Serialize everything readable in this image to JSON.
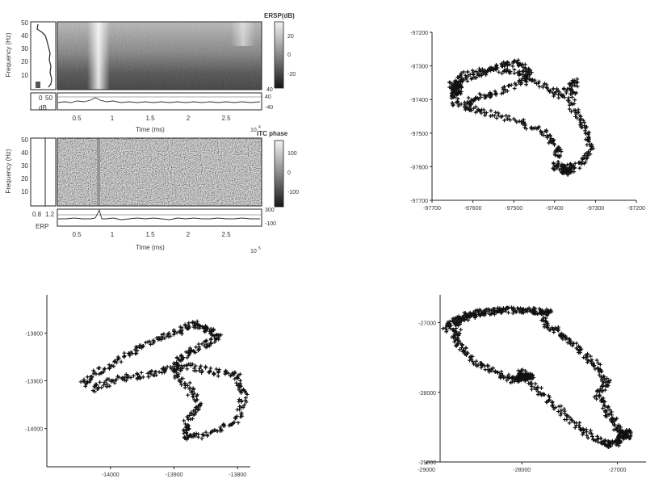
{
  "panels": {
    "ersp": {
      "title": "ERSP(dB)",
      "ylabel": "Frequency (Hz)",
      "yticks": [
        "50",
        "40",
        "30",
        "20",
        "10"
      ],
      "colorbar_ticks": [
        "20",
        "0",
        "-20"
      ],
      "colorbar_bottom": "40",
      "subrow_labels": [
        "0",
        "50",
        "dB"
      ],
      "subrow_right": [
        "40",
        "-40"
      ],
      "xlabel": "Time (ms)",
      "xticks": [
        "0.5",
        "1",
        "1.5",
        "2",
        "2.5"
      ],
      "multiplier": "10",
      "multiplier_exp": "4"
    },
    "itc": {
      "title": "ITC phase",
      "ylabel": "Frequency (Hz)",
      "yticks": [
        "50",
        "40",
        "30",
        "20",
        "10"
      ],
      "colorbar_ticks": [
        "100",
        "0",
        "-100"
      ],
      "subrow_labels": [
        "0.8",
        "1.2",
        "ERP"
      ],
      "subrow_right": [
        "300",
        "-100"
      ],
      "xlabel": "Time (ms)",
      "xticks": [
        "0.5",
        "1",
        "1.5",
        "2",
        "2.5"
      ],
      "multiplier": "10",
      "multiplier_exp": "5"
    }
  },
  "chart_data": [
    {
      "type": "scatter",
      "xlim": [
        -97700,
        -97200
      ],
      "ylim": [
        -97700,
        -97200
      ],
      "y_reversed": true,
      "xticks": [
        "-97700",
        "-97600",
        "-97500",
        "-97400",
        "-97300",
        "-97200"
      ],
      "yticks": [
        "-97200",
        "-97300",
        "-97400",
        "-97500",
        "-97600",
        "-97700"
      ],
      "marker": "+",
      "shape_path": [
        [
          -97660,
          -97360
        ],
        [
          -97600,
          -97330
        ],
        [
          -97530,
          -97300
        ],
        [
          -97490,
          -97290
        ],
        [
          -97460,
          -97320
        ],
        [
          -97480,
          -97350
        ],
        [
          -97540,
          -97380
        ],
        [
          -97600,
          -97400
        ],
        [
          -97620,
          -97420
        ],
        [
          -97560,
          -97440
        ],
        [
          -97480,
          -97470
        ],
        [
          -97420,
          -97500
        ],
        [
          -97390,
          -97550
        ],
        [
          -97400,
          -97600
        ],
        [
          -97370,
          -97620
        ],
        [
          -97330,
          -97580
        ],
        [
          -97310,
          -97530
        ],
        [
          -97330,
          -97470
        ],
        [
          -97360,
          -97410
        ],
        [
          -97350,
          -97340
        ],
        [
          -97380,
          -97390
        ],
        [
          -97430,
          -97360
        ],
        [
          -97490,
          -97320
        ],
        [
          -97560,
          -97310
        ],
        [
          -97630,
          -97330
        ],
        [
          -97650,
          -97380
        ],
        [
          -97640,
          -97420
        ]
      ],
      "dense": [
        [
          -97640,
          -97370
        ],
        [
          -97370,
          -97605
        ]
      ]
    },
    {
      "type": "scatter",
      "xlim": [
        -14100,
        -13780
      ],
      "ylim": [
        -14080,
        -13720
      ],
      "y_reversed": true,
      "xticks": [
        "-14000",
        "-13900",
        "-13800"
      ],
      "yticks": [
        "-13800",
        "-13900",
        "-14000"
      ],
      "marker": "+",
      "shape_path": [
        [
          -14045,
          -13910
        ],
        [
          -14020,
          -13880
        ],
        [
          -13980,
          -13850
        ],
        [
          -13940,
          -13820
        ],
        [
          -13900,
          -13800
        ],
        [
          -13870,
          -13780
        ],
        [
          -13850,
          -13790
        ],
        [
          -13830,
          -13810
        ],
        [
          -13860,
          -13830
        ],
        [
          -13890,
          -13850
        ],
        [
          -13900,
          -13880
        ],
        [
          -13880,
          -13910
        ],
        [
          -13860,
          -13950
        ],
        [
          -13880,
          -13990
        ],
        [
          -13880,
          -14020
        ],
        [
          -13840,
          -14010
        ],
        [
          -13800,
          -13980
        ],
        [
          -13790,
          -13930
        ],
        [
          -13800,
          -13890
        ],
        [
          -13840,
          -13880
        ],
        [
          -13880,
          -13870
        ],
        [
          -13920,
          -13880
        ],
        [
          -13960,
          -13890
        ],
        [
          -14000,
          -13900
        ],
        [
          -14030,
          -13920
        ]
      ]
    },
    {
      "type": "scatter",
      "xlim": [
        -29000,
        -26700
      ],
      "ylim": [
        -29000,
        -26600
      ],
      "y_reversed": true,
      "xticks": [
        "-29000",
        "-28000",
        "-27000"
      ],
      "yticks": [
        "-27000",
        "-28000",
        "-29000"
      ],
      "marker": "+",
      "shape_path": [
        [
          -28800,
          -27100
        ],
        [
          -28700,
          -26980
        ],
        [
          -28600,
          -26900
        ],
        [
          -28400,
          -26850
        ],
        [
          -28200,
          -26820
        ],
        [
          -27900,
          -26830
        ],
        [
          -27700,
          -26860
        ],
        [
          -27900,
          -26830
        ],
        [
          -28200,
          -26820
        ],
        [
          -28450,
          -26860
        ],
        [
          -28650,
          -26960
        ],
        [
          -28700,
          -27150
        ],
        [
          -28650,
          -27350
        ],
        [
          -28500,
          -27550
        ],
        [
          -28300,
          -27700
        ],
        [
          -28100,
          -27830
        ],
        [
          -28000,
          -27800
        ],
        [
          -27900,
          -27760
        ],
        [
          -28000,
          -27800
        ],
        [
          -28000,
          -27700
        ],
        [
          -27850,
          -27950
        ],
        [
          -27650,
          -28200
        ],
        [
          -27450,
          -28450
        ],
        [
          -27250,
          -28650
        ],
        [
          -27100,
          -28750
        ],
        [
          -27000,
          -28720
        ],
        [
          -26950,
          -28650
        ],
        [
          -27000,
          -28500
        ],
        [
          -27100,
          -28300
        ],
        [
          -27200,
          -28050
        ],
        [
          -27100,
          -27850
        ],
        [
          -27200,
          -27650
        ],
        [
          -27350,
          -27450
        ],
        [
          -27500,
          -27250
        ],
        [
          -27650,
          -27100
        ],
        [
          -27800,
          -26950
        ]
      ],
      "dense": [
        [
          -26920,
          -28600
        ]
      ]
    }
  ]
}
